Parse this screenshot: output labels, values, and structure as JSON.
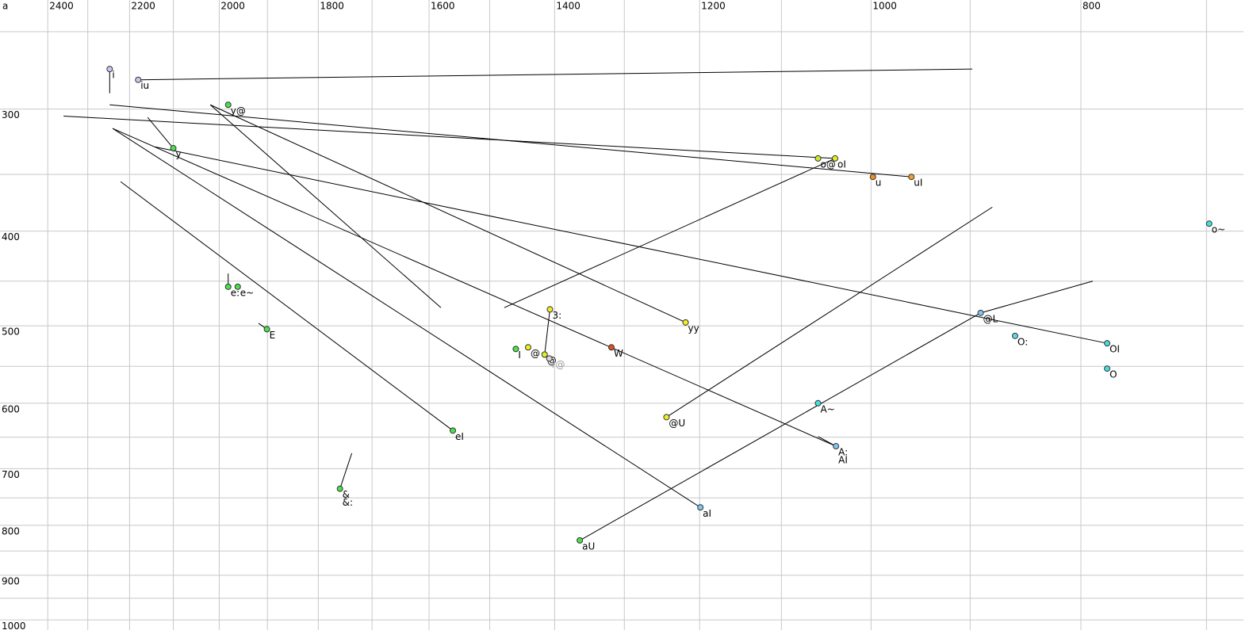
{
  "chart_data": {
    "type": "scatter",
    "corner_label": "a",
    "xscale": "log",
    "yscale": "log",
    "grid": true,
    "xlim": [
      2525,
      673
    ],
    "ylim": [
      232,
      1024
    ],
    "xticks": [
      2400,
      2200,
      2000,
      1800,
      1600,
      1400,
      1200,
      1000,
      800
    ],
    "x_grid": [
      2400,
      2300,
      2200,
      2100,
      2000,
      1900,
      1800,
      1700,
      1600,
      1500,
      1400,
      1300,
      1200,
      1100,
      1000,
      900,
      800,
      700
    ],
    "yticks": [
      300,
      400,
      500,
      600,
      700,
      800,
      900,
      1000
    ],
    "y_grid": [
      250,
      300,
      350,
      400,
      450,
      500,
      550,
      600,
      650,
      700,
      750,
      800,
      850,
      900,
      950,
      1000
    ],
    "points": [
      {
        "labels": [
          "i"
        ],
        "F2": 2247,
        "F1": 273,
        "color": "#c8c8f0"
      },
      {
        "labels": [
          "iu"
        ],
        "F2": 2180,
        "F1": 280,
        "color": "#c8c8f0"
      },
      {
        "labels": [
          "y@"
        ],
        "F2": 1981,
        "F1": 297,
        "color": "#4ce04c"
      },
      {
        "labels": [
          "y"
        ],
        "F2": 2100,
        "F1": 329,
        "color": "#4ce04c"
      },
      {
        "labels": [
          "o@"
        ],
        "F2": 1058,
        "F1": 337,
        "color": "#c8f020"
      },
      {
        "labels": [
          "oI"
        ],
        "F2": 1039,
        "F1": 337,
        "color": "#e0f020"
      },
      {
        "labels": [
          "u"
        ],
        "F2": 998,
        "F1": 352,
        "color": "#f09020"
      },
      {
        "labels": [
          "uI"
        ],
        "F2": 958,
        "F1": 352,
        "color": "#f0a030"
      },
      {
        "labels": [
          "o~"
        ],
        "F2": 698,
        "F1": 393,
        "color": "#40e0e0"
      },
      {
        "labels": [
          "e:"
        ],
        "F2": 1981,
        "F1": 456,
        "color": "#4ce04c"
      },
      {
        "labels": [
          "e~"
        ],
        "F2": 1961,
        "F1": 456,
        "color": "#4ce04c"
      },
      {
        "labels": [
          "E"
        ],
        "F2": 1901,
        "F1": 504,
        "color": "#4ce04c"
      },
      {
        "labels": [
          "3:"
        ],
        "F2": 1407,
        "F1": 481,
        "color": "#f0f020"
      },
      {
        "labels": [
          "yy"
        ],
        "F2": 1218,
        "F1": 496,
        "color": "#f0f020"
      },
      {
        "labels": [
          "@L"
        ],
        "F2": 890,
        "F1": 485,
        "color": "#80c8f0"
      },
      {
        "labels": [
          "O:"
        ],
        "F2": 858,
        "F1": 512,
        "color": "#60d8e8"
      },
      {
        "labels": [
          "OI"
        ],
        "F2": 778,
        "F1": 521,
        "color": "#40e0e0"
      },
      {
        "labels": [
          "O"
        ],
        "F2": 778,
        "F1": 553,
        "color": "#40e0e0"
      },
      {
        "labels": [
          "I"
        ],
        "F2": 1459,
        "F1": 528,
        "color": "#4ce04c"
      },
      {
        "labels": [
          "@"
        ],
        "F2": 1440,
        "F1": 526,
        "color": "#f0f020"
      },
      {
        "labels": [
          "@"
        ],
        "F2": 1415,
        "F1": 535,
        "color": "#e0f020"
      },
      {
        "labels": [
          "r@"
        ],
        "F2": 1408,
        "F1": 540,
        "color": "#d8d8d8"
      },
      {
        "labels": [
          "W"
        ],
        "F2": 1318,
        "F1": 526,
        "color": "#e05020"
      },
      {
        "labels": [
          "@U"
        ],
        "F2": 1243,
        "F1": 620,
        "color": "#f0f020"
      },
      {
        "labels": [
          "A~"
        ],
        "F2": 1058,
        "F1": 600,
        "color": "#40e0e0"
      },
      {
        "labels": [
          "A:",
          "AI"
        ],
        "F2": 1038,
        "F1": 664,
        "color": "#80c8f0"
      },
      {
        "labels": [
          "eI"
        ],
        "F2": 1560,
        "F1": 640,
        "color": "#4ce04c"
      },
      {
        "labels": [
          "&",
          "&:"
        ],
        "F2": 1759,
        "F1": 734,
        "color": "#4ce04c"
      },
      {
        "labels": [
          "aI"
        ],
        "F2": 1199,
        "F1": 767,
        "color": "#80c8f0"
      },
      {
        "labels": [
          "aU"
        ],
        "F2": 1363,
        "F1": 829,
        "color": "#4ce04c"
      }
    ],
    "segments": [
      [
        2180,
        280,
        898,
        273
      ],
      [
        2247,
        297,
        958,
        352
      ],
      [
        2360,
        305,
        1039,
        337
      ],
      [
        2158,
        306,
        2100,
        329
      ],
      [
        2019,
        297,
        1580,
        479
      ],
      [
        2019,
        297,
        1218,
        496
      ],
      [
        2240,
        314,
        1199,
        767
      ],
      [
        2240,
        314,
        1038,
        664
      ],
      [
        2141,
        328,
        778,
        521
      ],
      [
        2221,
        356,
        1560,
        640
      ],
      [
        1477,
        479,
        1039,
        337
      ],
      [
        1243,
        620,
        879,
        378
      ],
      [
        1363,
        829,
        890,
        485
      ],
      [
        890,
        485,
        790,
        450
      ],
      [
        1407,
        481,
        1415,
        535
      ],
      [
        1759,
        734,
        1737,
        675
      ],
      [
        2247,
        273,
        2247,
        289
      ],
      [
        1981,
        442,
        1981,
        456
      ],
      [
        1918,
        497,
        1901,
        504
      ],
      [
        1058,
        649,
        1038,
        664
      ]
    ]
  }
}
